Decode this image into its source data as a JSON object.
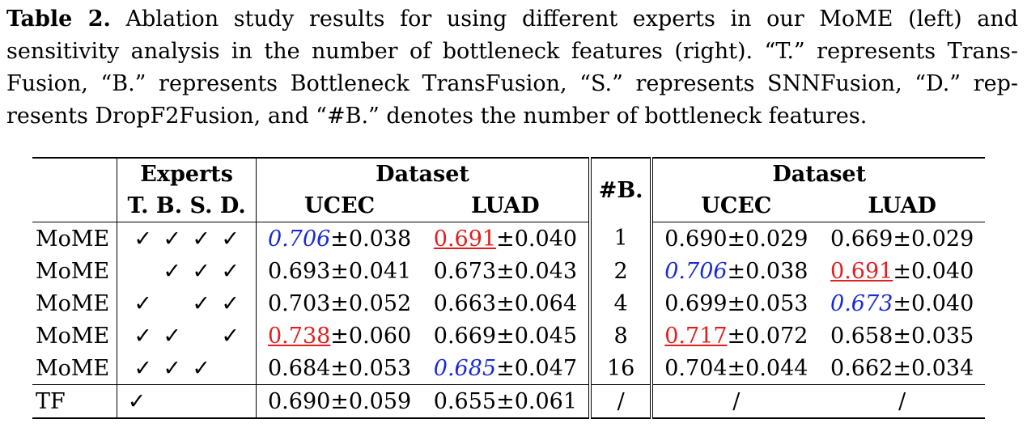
{
  "caption": {
    "label": "Table 2.",
    "text": " Ablation study results for using different experts in our MoME (left) and sensitivity analysis in the number of bottleneck features (right). “T.” represents Trans-Fusion, “B.” represents Bottleneck TransFusion, “S.” represents SNNFusion, “D.” rep-resents DropF2Fusion, and “#B.” denotes the number of bottleneck features."
  },
  "header": {
    "experts": "Experts",
    "expert_cols": "T. B. S. D.",
    "dataset_left": "Dataset",
    "ucec_left": "UCEC",
    "luad_left": "LUAD",
    "num_b": "#B.",
    "dataset_right": "Dataset",
    "ucec_right": "UCEC",
    "luad_right": "LUAD"
  },
  "check_symbol": "✓",
  "rows": [
    {
      "model": "MoME",
      "t": "✓",
      "b": "✓",
      "s": "✓",
      "d": "✓",
      "ucec_val": "0.706",
      "ucec_std": "±0.038",
      "luad_val": "0.691",
      "luad_std": "±0.040",
      "nb": "1",
      "r_ucec_val": "0.690",
      "r_ucec_std": "±0.029",
      "r_luad_val": "0.669",
      "r_luad_std": "±0.029"
    },
    {
      "model": "MoME",
      "t": "",
      "b": "✓",
      "s": "✓",
      "d": "✓",
      "ucec_val": "0.693",
      "ucec_std": "±0.041",
      "luad_val": "0.673",
      "luad_std": "±0.043",
      "nb": "2",
      "r_ucec_val": "0.706",
      "r_ucec_std": "±0.038",
      "r_luad_val": "0.691",
      "r_luad_std": "±0.040"
    },
    {
      "model": "MoME",
      "t": "✓",
      "b": "",
      "s": "✓",
      "d": "✓",
      "ucec_val": "0.703",
      "ucec_std": "±0.052",
      "luad_val": "0.663",
      "luad_std": "±0.064",
      "nb": "4",
      "r_ucec_val": "0.699",
      "r_ucec_std": "±0.053",
      "r_luad_val": "0.673",
      "r_luad_std": "±0.040"
    },
    {
      "model": "MoME",
      "t": "✓",
      "b": "✓",
      "s": "",
      "d": "✓",
      "ucec_val": "0.738",
      "ucec_std": "±0.060",
      "luad_val": "0.669",
      "luad_std": "±0.045",
      "nb": "8",
      "r_ucec_val": "0.717",
      "r_ucec_std": "±0.072",
      "r_luad_val": "0.658",
      "r_luad_std": "±0.035"
    },
    {
      "model": "MoME",
      "t": "✓",
      "b": "✓",
      "s": "✓",
      "d": "",
      "ucec_val": "0.684",
      "ucec_std": "±0.053",
      "luad_val": "0.685",
      "luad_std": "±0.047",
      "nb": "16",
      "r_ucec_val": "0.704",
      "r_ucec_std": "±0.044",
      "r_luad_val": "0.662",
      "r_luad_std": "±0.034"
    }
  ],
  "tf_row": {
    "model": "TF",
    "t": "✓",
    "ucec": "0.690±0.059",
    "luad": "0.655±0.061",
    "nb": "/",
    "r_ucec": "/",
    "r_luad": "/"
  },
  "highlight_colors": {
    "best": "#e02020",
    "second": "#1a2bd6"
  }
}
